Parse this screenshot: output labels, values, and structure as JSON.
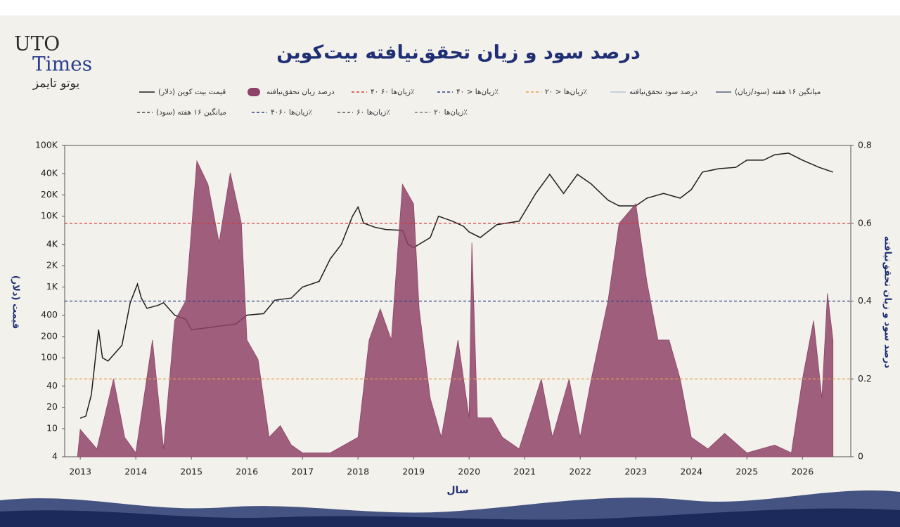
{
  "logo": {
    "line1": "UTO",
    "line2": "Times",
    "line3": "یوتو تایمز"
  },
  "chart_data": {
    "type": "line",
    "title": "درصد سود و زیان تحقق‌نیافته بیت‌کوین",
    "x_label": "سال",
    "y_label": "قیمت (دلار)",
    "y2_label": "درصد سود و زیان تحقق‌نیافته",
    "log_y": true,
    "xlim": [
      2012.72,
      2026.87
    ],
    "xticks": [
      2013,
      2014,
      2015,
      2016,
      2017,
      2018,
      2019,
      2020,
      2021,
      2022,
      2023,
      2024,
      2025,
      2026
    ],
    "ylim": [
      4,
      100000
    ],
    "yticks": [
      {
        "value": 100000,
        "label": "100K"
      },
      {
        "value": 40000,
        "label": "40K"
      },
      {
        "value": 20000,
        "label": "20K"
      },
      {
        "value": 10000,
        "label": "10K"
      },
      {
        "value": 4000,
        "label": "4K"
      },
      {
        "value": 4000,
        "label": "4K"
      },
      {
        "value": 2000,
        "label": "2K"
      },
      {
        "value": 1000,
        "label": "1K"
      },
      400,
      200,
      100,
      40,
      20,
      10,
      4
    ],
    "y2lim": [
      0,
      0.8
    ],
    "y2ticks": [
      0.8,
      0.6,
      0.4,
      0.2,
      0
    ],
    "series": [
      {
        "name": "قیمت بیت کوین (دلار)",
        "color": "#1e1e1e",
        "x": [
          2013.0,
          2013.1,
          2013.2,
          2013.33,
          2013.4,
          2013.5,
          2013.6,
          2013.75,
          2013.9,
          2014.03,
          2014.1,
          2014.2,
          2014.4,
          2014.5,
          2014.7,
          2014.9,
          2015.0,
          2015.2,
          2015.5,
          2015.8,
          2016.0,
          2016.3,
          2016.5,
          2016.8,
          2017.0,
          2017.3,
          2017.5,
          2017.7,
          2017.9,
          2018.0,
          2018.1,
          2018.3,
          2018.5,
          2018.8,
          2018.9,
          2019.0,
          2019.3,
          2019.45,
          2019.7,
          2019.9,
          2020.0,
          2020.2,
          2020.5,
          2020.9,
          2021.2,
          2021.45,
          2021.7,
          2021.95,
          2022.2,
          2022.5,
          2022.7,
          2023.0,
          2023.2,
          2023.5,
          2023.8,
          2024.0,
          2024.2,
          2024.5,
          2024.8,
          2025.0,
          2025.3,
          2025.5,
          2025.75,
          2026.0,
          2026.3,
          2026.55
        ],
        "values": [
          14,
          15,
          30,
          250,
          100,
          90,
          110,
          150,
          600,
          1100,
          700,
          500,
          550,
          600,
          400,
          350,
          250,
          260,
          280,
          300,
          400,
          420,
          650,
          700,
          1000,
          1200,
          2500,
          4000,
          10000,
          13500,
          8000,
          7000,
          6500,
          6300,
          4000,
          3600,
          5000,
          10000,
          8500,
          7200,
          6000,
          5000,
          7600,
          8500,
          21000,
          39000,
          21000,
          39000,
          28500,
          16900,
          14000,
          14000,
          18000,
          21000,
          18000,
          23800,
          42000,
          47000,
          49000,
          62000,
          62000,
          74000,
          78000,
          62000,
          49000,
          42000
        ]
      },
      {
        "name": "درصد زیان تحقق‌نیافته",
        "color": "#8e4468",
        "axis": "y2",
        "kind": "area",
        "x": [
          2012.95,
          2013.0,
          2013.3,
          2013.6,
          2013.8,
          2014.0,
          2014.3,
          2014.5,
          2014.7,
          2014.9,
          2015.1,
          2015.3,
          2015.5,
          2015.7,
          2015.9,
          2016.0,
          2016.2,
          2016.4,
          2016.6,
          2016.8,
          2017.0,
          2017.5,
          2018.0,
          2018.2,
          2018.4,
          2018.6,
          2018.8,
          2019.0,
          2019.1,
          2019.3,
          2019.5,
          2019.8,
          2020.0,
          2020.05,
          2020.15,
          2020.4,
          2020.6,
          2020.9,
          2021.3,
          2021.5,
          2021.8,
          2022.0,
          2022.2,
          2022.5,
          2022.7,
          2023.0,
          2023.2,
          2023.4,
          2023.6,
          2023.8,
          2024.0,
          2024.3,
          2024.6,
          2025.0,
          2025.5,
          2025.8,
          2026.0,
          2026.2,
          2026.35,
          2026.45,
          2026.55
        ],
        "values": [
          0,
          0.07,
          0.02,
          0.2,
          0.05,
          0.01,
          0.3,
          0.02,
          0.35,
          0.4,
          0.76,
          0.7,
          0.55,
          0.73,
          0.6,
          0.3,
          0.25,
          0.05,
          0.08,
          0.03,
          0.01,
          0.01,
          0.05,
          0.3,
          0.38,
          0.3,
          0.7,
          0.65,
          0.38,
          0.15,
          0.05,
          0.3,
          0.1,
          0.55,
          0.1,
          0.1,
          0.05,
          0.02,
          0.2,
          0.05,
          0.2,
          0.05,
          0.2,
          0.4,
          0.6,
          0.65,
          0.45,
          0.3,
          0.3,
          0.2,
          0.05,
          0.02,
          0.06,
          0.01,
          0.03,
          0.01,
          0.2,
          0.35,
          0.15,
          0.42,
          0.3
        ]
      }
    ],
    "reference_lines": [
      {
        "value": 0.6,
        "color": "#d83a3a"
      },
      {
        "value": 0.4,
        "color": "#2c3f86"
      },
      {
        "value": 0.2,
        "color": "#e6a04a"
      }
    ],
    "legend_items": [
      {
        "name": "زیان‌ها ۶۰ ۴۰٪",
        "color": "#d83a3a",
        "style": "dash"
      },
      {
        "name": "زیان‌ها < ۴۰٪",
        "color": "#2c3f86",
        "style": "dash"
      },
      {
        "name": "زیان‌ها < ۲۰٪",
        "color": "#e6a04a",
        "style": "dash"
      },
      {
        "name": "درصد سود تحقق‌نیافته",
        "color": "#b8c6da",
        "style": "line"
      },
      {
        "name": "میانگین ۱۶ هفته (سود/زیان)",
        "color": "#55607a",
        "style": "line"
      },
      {
        "name": "میانگین ۱۶ هفته (سود)",
        "color": "#444",
        "style": "dash"
      },
      {
        "name": "زیان‌ها ۴۰۶۰٪",
        "color": "#2c3f86",
        "style": "dash"
      },
      {
        "name": "زیان‌ها ۶۰٪",
        "color": "#555",
        "style": "dash"
      },
      {
        "name": "زیان‌ها ۲۰٪",
        "color": "#777",
        "style": "dash"
      }
    ]
  }
}
